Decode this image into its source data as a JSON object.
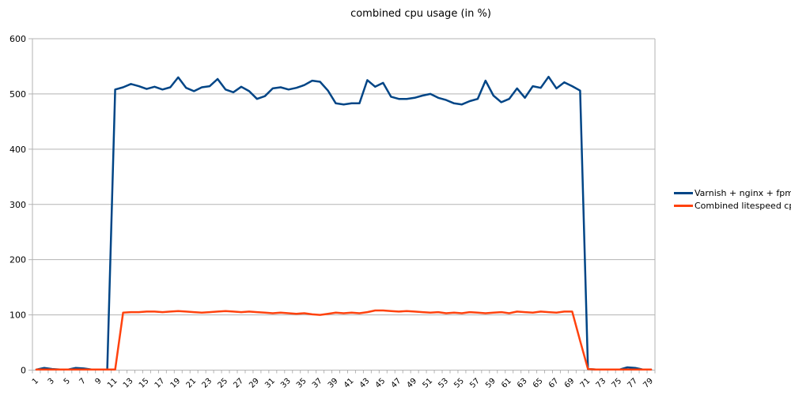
{
  "title": "combined cpu usage (in %)",
  "chart_data": {
    "type": "line",
    "title": "combined cpu usage (in %)",
    "xlabel": "",
    "ylabel": "",
    "ylim": [
      0,
      600
    ],
    "y_ticks": [
      0,
      100,
      200,
      300,
      400,
      500,
      600
    ],
    "grid": true,
    "legend_position": "right",
    "categories": [
      1,
      2,
      3,
      4,
      5,
      6,
      7,
      8,
      9,
      10,
      11,
      12,
      13,
      14,
      15,
      16,
      17,
      18,
      19,
      20,
      21,
      22,
      23,
      24,
      25,
      26,
      27,
      28,
      29,
      30,
      31,
      32,
      33,
      34,
      35,
      36,
      37,
      38,
      39,
      40,
      41,
      42,
      43,
      44,
      45,
      46,
      47,
      48,
      49,
      50,
      51,
      52,
      53,
      54,
      55,
      56,
      57,
      58,
      59,
      60,
      61,
      62,
      63,
      64,
      65,
      66,
      67,
      68,
      69,
      70,
      71,
      72,
      73,
      74,
      75,
      76,
      77,
      78,
      79
    ],
    "x_tick_labels": [
      1,
      3,
      5,
      7,
      9,
      11,
      13,
      15,
      17,
      19,
      21,
      23,
      25,
      27,
      29,
      31,
      33,
      35,
      37,
      39,
      41,
      43,
      45,
      47,
      49,
      51,
      53,
      55,
      57,
      59,
      61,
      63,
      65,
      67,
      69,
      71,
      73,
      75,
      77,
      79
    ],
    "series": [
      {
        "name": "Varnish + nginx + fpm cpu",
        "color": "#004586",
        "values": [
          1,
          4,
          2,
          1,
          1,
          4,
          3,
          1,
          1,
          1,
          508,
          512,
          518,
          514,
          509,
          513,
          508,
          512,
          530,
          511,
          505,
          512,
          514,
          527,
          508,
          503,
          513,
          505,
          491,
          496,
          510,
          512,
          508,
          511,
          516,
          524,
          522,
          506,
          483,
          481,
          483,
          483,
          525,
          513,
          520,
          495,
          491,
          491,
          493,
          497,
          500,
          493,
          489,
          483,
          481,
          487,
          491,
          524,
          497,
          485,
          491,
          510,
          493,
          514,
          511,
          531,
          510,
          521,
          514,
          506,
          2,
          1,
          1,
          1,
          1,
          5,
          4,
          1,
          1
        ]
      },
      {
        "name": "Combined litespeed cpu",
        "color": "#FF420E",
        "values": [
          1,
          1,
          1,
          1,
          1,
          1,
          1,
          1,
          1,
          1,
          1,
          104,
          105,
          105,
          106,
          106,
          105,
          106,
          107,
          106,
          105,
          104,
          105,
          106,
          107,
          106,
          105,
          106,
          105,
          104,
          103,
          104,
          103,
          102,
          103,
          101,
          100,
          102,
          104,
          103,
          104,
          103,
          105,
          108,
          108,
          107,
          106,
          107,
          106,
          105,
          104,
          105,
          103,
          104,
          103,
          105,
          104,
          103,
          104,
          105,
          103,
          106,
          105,
          104,
          106,
          105,
          104,
          106,
          106,
          53,
          2,
          1,
          1,
          1,
          1,
          1,
          1,
          1,
          1
        ]
      }
    ],
    "colors": {
      "gridline": "#b3b3b3",
      "axis_line": "#b3b3b3",
      "tick_text": "#000000",
      "background": "#ffffff"
    }
  }
}
